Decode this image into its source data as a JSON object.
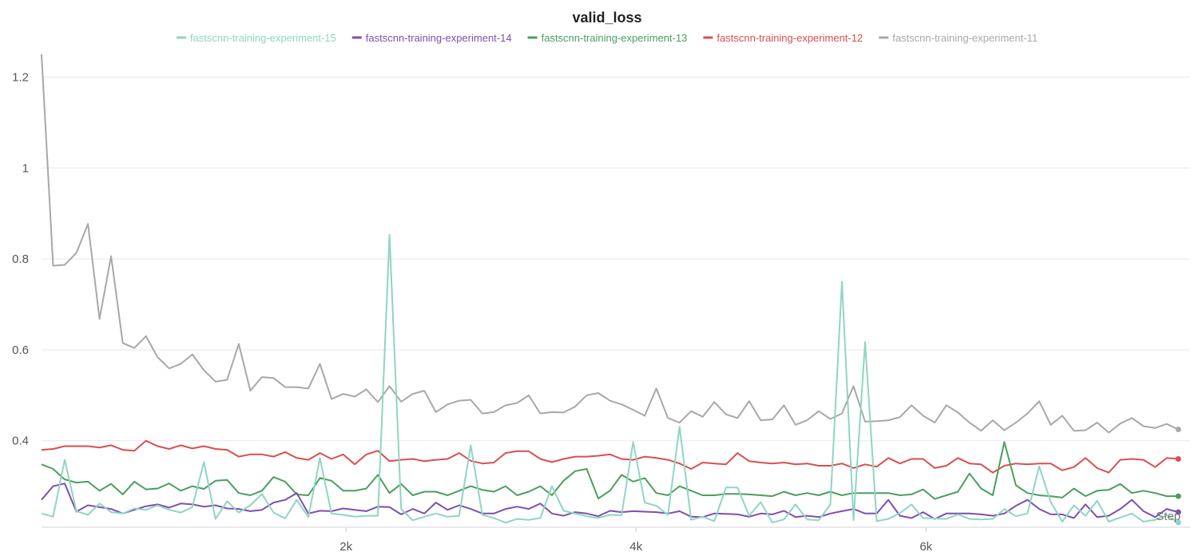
{
  "chart_data": {
    "type": "line",
    "title": "valid_loss",
    "xlabel": "Step",
    "ylabel": "",
    "xlim": [
      -100,
      7800
    ],
    "ylim": [
      0.215,
      1.25
    ],
    "xticks": [
      2000,
      4000,
      6000
    ],
    "xtick_labels": [
      "2k",
      "4k",
      "6k"
    ],
    "yticks": [
      0.4,
      0.6,
      0.8,
      1,
      1.2
    ],
    "ytick_labels": [
      "0.4",
      "0.6",
      "0.8",
      "1",
      "1.2"
    ],
    "grid": true,
    "legend": "top-center",
    "x": [
      -100,
      -20,
      60,
      140,
      220,
      300,
      380,
      460,
      540,
      620,
      700,
      780,
      860,
      940,
      1020,
      1100,
      1180,
      1260,
      1340,
      1420,
      1500,
      1580,
      1660,
      1740,
      1820,
      1900,
      1980,
      2060,
      2140,
      2220,
      2300,
      2380,
      2460,
      2540,
      2620,
      2700,
      2780,
      2860,
      2940,
      3020,
      3100,
      3180,
      3260,
      3340,
      3420,
      3500,
      3580,
      3660,
      3740,
      3820,
      3900,
      3980,
      4060,
      4140,
      4220,
      4300,
      4380,
      4460,
      4540,
      4620,
      4700,
      4780,
      4860,
      4940,
      5020,
      5100,
      5180,
      5260,
      5340,
      5420,
      5500,
      5580,
      5660,
      5740,
      5820,
      5900,
      5980,
      6060,
      6140,
      6220,
      6300,
      6380,
      6460,
      6540,
      6620,
      6700,
      6780,
      6860,
      6940,
      7020,
      7100,
      7180,
      7260,
      7340,
      7420,
      7500,
      7580,
      7660,
      7740
    ],
    "series": [
      {
        "name": "fastscnn-training-experiment-15",
        "color": "#8fd5c4",
        "values": [
          0.24,
          0.233,
          0.358,
          0.245,
          0.237,
          0.262,
          0.243,
          0.24,
          0.251,
          0.248,
          0.258,
          0.248,
          0.242,
          0.254,
          0.353,
          0.228,
          0.267,
          0.242,
          0.258,
          0.283,
          0.242,
          0.229,
          0.27,
          0.232,
          0.362,
          0.24,
          0.237,
          0.233,
          0.235,
          0.235,
          0.853,
          0.25,
          0.225,
          0.233,
          0.24,
          0.233,
          0.235,
          0.39,
          0.237,
          0.23,
          0.22,
          0.228,
          0.226,
          0.23,
          0.3,
          0.246,
          0.24,
          0.234,
          0.23,
          0.237,
          0.236,
          0.397,
          0.264,
          0.257,
          0.237,
          0.431,
          0.226,
          0.233,
          0.223,
          0.297,
          0.297,
          0.235,
          0.265,
          0.22,
          0.227,
          0.26,
          0.227,
          0.225,
          0.26,
          0.75,
          0.225,
          0.617,
          0.223,
          0.228,
          0.241,
          0.26,
          0.23,
          0.229,
          0.228,
          0.238,
          0.228,
          0.227,
          0.228,
          0.25,
          0.234,
          0.24,
          0.344,
          0.265,
          0.222,
          0.258,
          0.235,
          0.268,
          0.222,
          0.231,
          0.24,
          0.222,
          0.226,
          0.236,
          0.22
        ]
      },
      {
        "name": "fastscnn-training-experiment-14",
        "color": "#7e4fb0",
        "values": [
          0.27,
          0.3,
          0.306,
          0.244,
          0.258,
          0.254,
          0.25,
          0.24,
          0.248,
          0.256,
          0.26,
          0.253,
          0.262,
          0.26,
          0.255,
          0.258,
          0.251,
          0.25,
          0.245,
          0.248,
          0.264,
          0.27,
          0.285,
          0.24,
          0.246,
          0.245,
          0.251,
          0.248,
          0.245,
          0.255,
          0.254,
          0.238,
          0.25,
          0.24,
          0.264,
          0.248,
          0.258,
          0.25,
          0.24,
          0.24,
          0.25,
          0.255,
          0.25,
          0.262,
          0.24,
          0.235,
          0.243,
          0.24,
          0.234,
          0.246,
          0.243,
          0.245,
          0.244,
          0.243,
          0.24,
          0.245,
          0.233,
          0.232,
          0.24,
          0.239,
          0.238,
          0.233,
          0.24,
          0.238,
          0.246,
          0.232,
          0.235,
          0.232,
          0.24,
          0.245,
          0.25,
          0.24,
          0.24,
          0.27,
          0.235,
          0.23,
          0.243,
          0.228,
          0.24,
          0.24,
          0.24,
          0.238,
          0.235,
          0.24,
          0.257,
          0.27,
          0.25,
          0.238,
          0.238,
          0.23,
          0.26,
          0.232,
          0.235,
          0.25,
          0.27,
          0.245,
          0.232,
          0.25,
          0.243
        ]
      },
      {
        "name": "fastscnn-training-experiment-13",
        "color": "#4c9e5e",
        "values": [
          0.348,
          0.338,
          0.315,
          0.308,
          0.31,
          0.29,
          0.305,
          0.282,
          0.31,
          0.293,
          0.295,
          0.306,
          0.29,
          0.3,
          0.294,
          0.312,
          0.314,
          0.285,
          0.28,
          0.29,
          0.32,
          0.31,
          0.282,
          0.28,
          0.318,
          0.312,
          0.29,
          0.29,
          0.295,
          0.325,
          0.285,
          0.305,
          0.28,
          0.288,
          0.288,
          0.28,
          0.29,
          0.3,
          0.292,
          0.288,
          0.3,
          0.28,
          0.288,
          0.3,
          0.28,
          0.312,
          0.333,
          0.338,
          0.273,
          0.29,
          0.325,
          0.31,
          0.318,
          0.285,
          0.28,
          0.3,
          0.29,
          0.28,
          0.28,
          0.283,
          0.283,
          0.282,
          0.28,
          0.278,
          0.288,
          0.28,
          0.285,
          0.28,
          0.288,
          0.28,
          0.285,
          0.285,
          0.285,
          0.285,
          0.28,
          0.282,
          0.293,
          0.272,
          0.28,
          0.288,
          0.328,
          0.295,
          0.28,
          0.397,
          0.302,
          0.285,
          0.28,
          0.278,
          0.275,
          0.295,
          0.278,
          0.29,
          0.292,
          0.305,
          0.285,
          0.29,
          0.285,
          0.278,
          0.278
        ]
      },
      {
        "name": "fastscnn-training-experiment-12",
        "color": "#d94f4f",
        "values": [
          0.38,
          0.382,
          0.388,
          0.388,
          0.388,
          0.385,
          0.39,
          0.38,
          0.378,
          0.4,
          0.388,
          0.382,
          0.39,
          0.383,
          0.388,
          0.382,
          0.38,
          0.365,
          0.37,
          0.37,
          0.365,
          0.375,
          0.362,
          0.358,
          0.373,
          0.36,
          0.37,
          0.348,
          0.37,
          0.378,
          0.355,
          0.358,
          0.36,
          0.355,
          0.358,
          0.36,
          0.373,
          0.356,
          0.35,
          0.352,
          0.373,
          0.377,
          0.377,
          0.36,
          0.353,
          0.36,
          0.365,
          0.365,
          0.367,
          0.37,
          0.36,
          0.358,
          0.365,
          0.362,
          0.358,
          0.35,
          0.338,
          0.352,
          0.35,
          0.348,
          0.373,
          0.355,
          0.352,
          0.35,
          0.352,
          0.348,
          0.35,
          0.345,
          0.345,
          0.35,
          0.34,
          0.348,
          0.343,
          0.362,
          0.35,
          0.36,
          0.36,
          0.34,
          0.345,
          0.362,
          0.35,
          0.348,
          0.33,
          0.345,
          0.35,
          0.348,
          0.35,
          0.35,
          0.335,
          0.342,
          0.362,
          0.34,
          0.33,
          0.358,
          0.36,
          0.358,
          0.342,
          0.362,
          0.36
        ]
      },
      {
        "name": "fastscnn-training-experiment-11",
        "color": "#a8a8a8",
        "values": [
          1.25,
          0.785,
          0.787,
          0.813,
          0.877,
          0.668,
          0.806,
          0.615,
          0.604,
          0.63,
          0.584,
          0.559,
          0.569,
          0.59,
          0.555,
          0.53,
          0.534,
          0.613,
          0.51,
          0.54,
          0.538,
          0.518,
          0.518,
          0.515,
          0.569,
          0.492,
          0.503,
          0.497,
          0.513,
          0.485,
          0.52,
          0.486,
          0.503,
          0.51,
          0.463,
          0.48,
          0.488,
          0.49,
          0.46,
          0.463,
          0.478,
          0.483,
          0.5,
          0.46,
          0.463,
          0.462,
          0.475,
          0.5,
          0.505,
          0.488,
          0.48,
          0.468,
          0.455,
          0.515,
          0.45,
          0.44,
          0.465,
          0.453,
          0.485,
          0.458,
          0.45,
          0.487,
          0.445,
          0.447,
          0.478,
          0.435,
          0.445,
          0.465,
          0.448,
          0.46,
          0.52,
          0.442,
          0.443,
          0.445,
          0.452,
          0.478,
          0.455,
          0.44,
          0.478,
          0.462,
          0.44,
          0.422,
          0.445,
          0.423,
          0.44,
          0.46,
          0.487,
          0.435,
          0.455,
          0.422,
          0.423,
          0.44,
          0.418,
          0.438,
          0.45,
          0.432,
          0.428,
          0.437,
          0.425
        ]
      }
    ]
  }
}
